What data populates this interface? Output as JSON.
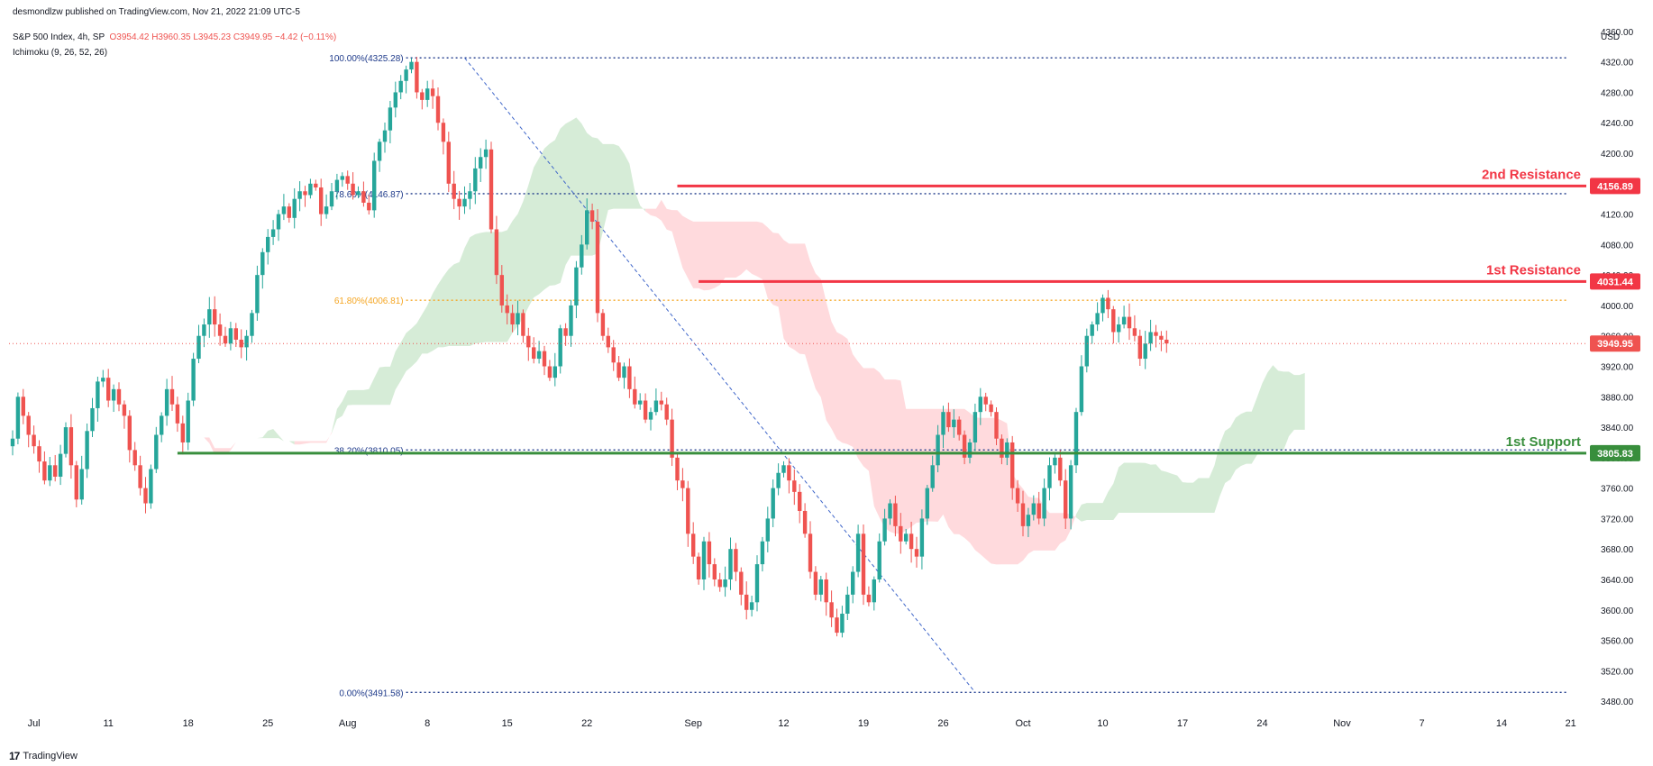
{
  "header": {
    "published": "desmondlzw published on TradingView.com, Nov 21, 2022 21:09 UTC-5",
    "symbol": "S&P 500 Index, 4h, SP",
    "ohlc": "O3954.42 H3960.35 L3945.23 C3949.95 −4.42 (−0.11%)",
    "indicator": "Ichimoku (9, 26, 52, 26)"
  },
  "footer": {
    "brand": "TradingView",
    "logo_icon": "tradingview-logo-icon"
  },
  "colors": {
    "up": "#26a69a",
    "down": "#ef5350",
    "resistance": "#f23645",
    "support": "#388e3c",
    "fib": "#1e3a8a",
    "fib_mid": "#f5a623",
    "cloud_bull": "#c8e6c9",
    "cloud_bear": "#ffcdd2"
  },
  "chart_data": {
    "type": "candlestick",
    "currency": "USD",
    "ylim": [
      3460,
      4380
    ],
    "y_ticks": [
      3480,
      3520,
      3560,
      3600,
      3640,
      3680,
      3720,
      3760,
      3800,
      3840,
      3880,
      3920,
      3960,
      4000,
      4040,
      4080,
      4120,
      4160,
      4200,
      4240,
      4280,
      4320,
      4360
    ],
    "x_labels": [
      {
        "label": "Jul",
        "bar": 4
      },
      {
        "label": "11",
        "bar": 18
      },
      {
        "label": "18",
        "bar": 33
      },
      {
        "label": "25",
        "bar": 48
      },
      {
        "label": "Aug",
        "bar": 63
      },
      {
        "label": "8",
        "bar": 78
      },
      {
        "label": "15",
        "bar": 93
      },
      {
        "label": "22",
        "bar": 108
      },
      {
        "label": "Sep",
        "bar": 128
      },
      {
        "label": "12",
        "bar": 145
      },
      {
        "label": "19",
        "bar": 160
      },
      {
        "label": "26",
        "bar": 175
      },
      {
        "label": "Oct",
        "bar": 190
      },
      {
        "label": "10",
        "bar": 205
      },
      {
        "label": "17",
        "bar": 220
      },
      {
        "label": "24",
        "bar": 235
      },
      {
        "label": "Nov",
        "bar": 250
      },
      {
        "label": "7",
        "bar": 265
      },
      {
        "label": "14",
        "bar": 280
      },
      {
        "label": "21",
        "bar": 293
      }
    ],
    "closes": [
      3825,
      3880,
      3855,
      3830,
      3815,
      3795,
      3770,
      3790,
      3775,
      3805,
      3840,
      3790,
      3745,
      3785,
      3835,
      3865,
      3900,
      3905,
      3875,
      3890,
      3870,
      3855,
      3810,
      3790,
      3760,
      3740,
      3785,
      3830,
      3855,
      3890,
      3870,
      3845,
      3820,
      3875,
      3930,
      3960,
      3975,
      3995,
      3975,
      3960,
      3950,
      3970,
      3955,
      3945,
      3960,
      3990,
      4040,
      4070,
      4090,
      4100,
      4120,
      4130,
      4115,
      4140,
      4150,
      4145,
      4160,
      4155,
      4120,
      4130,
      4150,
      4165,
      4170,
      4160,
      4145,
      4150,
      4135,
      4125,
      4190,
      4215,
      4230,
      4260,
      4280,
      4295,
      4310,
      4320,
      4280,
      4270,
      4285,
      4275,
      4240,
      4215,
      4160,
      4140,
      4130,
      4140,
      4150,
      4180,
      4195,
      4205,
      4100,
      4040,
      4000,
      3990,
      3975,
      3990,
      3960,
      3945,
      3930,
      3940,
      3920,
      3905,
      3920,
      3970,
      3960,
      4000,
      4050,
      4080,
      4125,
      4110,
      3990,
      3960,
      3945,
      3925,
      3905,
      3920,
      3890,
      3870,
      3875,
      3850,
      3860,
      3875,
      3870,
      3850,
      3800,
      3770,
      3760,
      3700,
      3670,
      3640,
      3690,
      3660,
      3640,
      3630,
      3640,
      3680,
      3650,
      3620,
      3600,
      3610,
      3660,
      3690,
      3720,
      3760,
      3780,
      3790,
      3770,
      3755,
      3730,
      3700,
      3650,
      3620,
      3640,
      3610,
      3590,
      3570,
      3595,
      3620,
      3650,
      3700,
      3620,
      3610,
      3640,
      3690,
      3720,
      3740,
      3710,
      3690,
      3700,
      3680,
      3670,
      3720,
      3760,
      3790,
      3830,
      3860,
      3840,
      3850,
      3830,
      3800,
      3820,
      3860,
      3880,
      3870,
      3860,
      3825,
      3800,
      3820,
      3760,
      3740,
      3710,
      3725,
      3740,
      3720,
      3760,
      3790,
      3800,
      3770,
      3720,
      3790,
      3860,
      3920,
      3960,
      3975,
      3990,
      4010,
      3995,
      3965,
      3975,
      3985,
      3970,
      3960,
      3930,
      3950,
      3965,
      3960,
      3955,
      3950
    ],
    "fib_levels": [
      {
        "label": "100.00%(4325.28)",
        "value": 4325.28,
        "tone": "fib"
      },
      {
        "label": "78.60%(4146.87)",
        "value": 4146.87,
        "tone": "fib"
      },
      {
        "label": "61.80%(4006.81)",
        "value": 4006.81,
        "tone": "fib_mid"
      },
      {
        "label": "38.20%(3810.05)",
        "value": 3810.05,
        "tone": "fib"
      },
      {
        "label": "0.00%(3491.58)",
        "value": 3491.58,
        "tone": "fib"
      }
    ],
    "horizontal_lines": [
      {
        "name": "2nd Resistance",
        "value": 4156.89,
        "tag": "4156.89",
        "tone": "resistance"
      },
      {
        "name": "1st Resistance",
        "value": 4031.44,
        "tag": "4031.44",
        "tone": "resistance"
      },
      {
        "name": "1st Support",
        "value": 3805.83,
        "tag": "3805.83",
        "tone": "support"
      }
    ],
    "last_price": {
      "value": 3949.95,
      "tag": "3949.95"
    }
  }
}
